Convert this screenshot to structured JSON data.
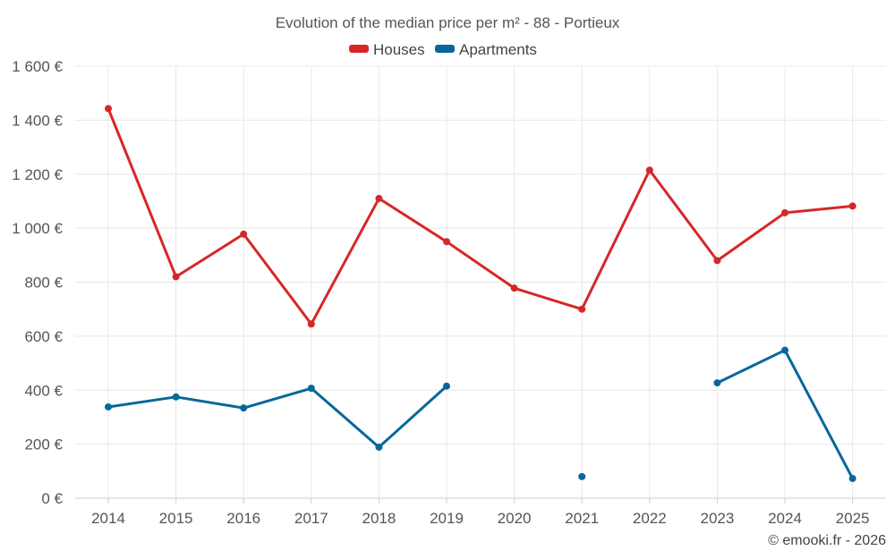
{
  "chart_data": {
    "type": "line",
    "title": "Evolution of the median price per m² - 88 - Portieux",
    "xlabel": "",
    "ylabel": "",
    "categories": [
      "2014",
      "2015",
      "2016",
      "2017",
      "2018",
      "2019",
      "2020",
      "2021",
      "2022",
      "2023",
      "2024",
      "2025"
    ],
    "ylim": [
      0,
      1600
    ],
    "yticks": [
      0,
      200,
      400,
      600,
      800,
      1000,
      1200,
      1400,
      1600
    ],
    "ytick_labels": [
      "0 €",
      "200 €",
      "400 €",
      "600 €",
      "800 €",
      "1 000 €",
      "1 200 €",
      "1 400 €",
      "1 600 €"
    ],
    "grid": true,
    "legend_position": "top-center",
    "series": [
      {
        "name": "Houses",
        "color": "#d62728",
        "values": [
          1443,
          820,
          978,
          645,
          1110,
          950,
          778,
          700,
          1215,
          880,
          1057,
          1082
        ]
      },
      {
        "name": "Apartments",
        "color": "#07679b",
        "values": [
          338,
          375,
          334,
          407,
          189,
          415,
          null,
          80,
          null,
          427,
          548,
          73
        ]
      }
    ],
    "credit": "© emooki.fr - 2026"
  }
}
